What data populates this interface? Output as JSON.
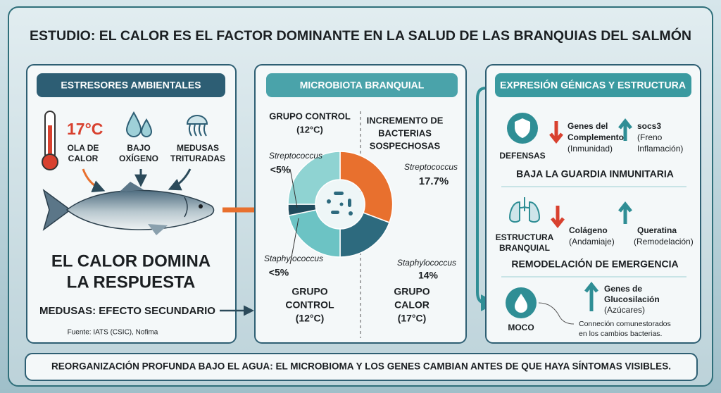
{
  "title": "ESTUDIO: EL CALOR ES EL FACTOR DOMINANTE EN LA SALUD DE LAS BRANQUIAS DEL SALMÓN",
  "left_panel": {
    "header": "ESTRESORES AMBIENTALES",
    "temperature": "17°C",
    "heatwave": [
      "OLA DE",
      "CALOR"
    ],
    "low_oxygen": [
      "BAJO",
      "OXÍGENO"
    ],
    "jellyfish": [
      "MEDUSAS",
      "TRITURADAS"
    ],
    "headline": [
      "EL CALOR DOMINA",
      "LA RESPUESTA"
    ],
    "secondary": "MEDUSAS: EFECTO SECUNDARIO",
    "source": "Fuente: IATS (CSIC), Nofima"
  },
  "middle_panel": {
    "header": "MICROBIOTA BRANQUIAL",
    "control_title": [
      "GRUPO CONTROL",
      "(12°C)"
    ],
    "increase_title": [
      "INCREMENTO DE",
      "BACTERIAS",
      "SOSPECHOSAS"
    ],
    "control_strep": {
      "name": "Streptococcus",
      "value": "<5%"
    },
    "control_staph": {
      "name": "Staphylococcus",
      "value": "<5%"
    },
    "heat_strep": {
      "name": "Streptococcus",
      "value": "17.7%"
    },
    "heat_staph": {
      "name": "Staphylococcus",
      "value": "14%"
    },
    "control_group": [
      "GRUPO",
      "CONTROL",
      "(12°C)"
    ],
    "heat_group": [
      "GRUPO",
      "CALOR",
      "(17°C)"
    ]
  },
  "right_panel": {
    "header": "EXPRESIÓN GÉNICAS Y ESTRUCTURA",
    "defense": {
      "label": "DEFENSAS",
      "down": {
        "title": [
          "Genes del",
          "Complemento"
        ],
        "note": "(Inmunidad)"
      },
      "up": {
        "title": "socs3",
        "note": [
          "(Freno",
          "Inflamación)"
        ]
      },
      "summary": "BAJA LA GUARDIA INMUNITARIA"
    },
    "structure": {
      "label": [
        "ESTRUCTURA",
        "BRANQUIAL"
      ],
      "down": {
        "title": "Colágeno",
        "note": "(Andamiaje)"
      },
      "up": {
        "title": "Queratina",
        "note": "(Remodelación)"
      },
      "summary": "REMODELACIÓN DE EMERGENCIA"
    },
    "mucus": {
      "label": "MOCO",
      "up": {
        "title": [
          "Genes de",
          "Glucosilación"
        ],
        "note": "(Azúcares)"
      },
      "connection": [
        "Conneción comunestorados",
        "en los cambios bacterias."
      ]
    }
  },
  "footer": "REORGANIZACIÓN PROFUNDA BAJO EL AGUA: EL MICROBIOMA Y LOS GENES CAMBIAN ANTES DE QUE HAYA SÍNTOMAS VISIBLES."
}
